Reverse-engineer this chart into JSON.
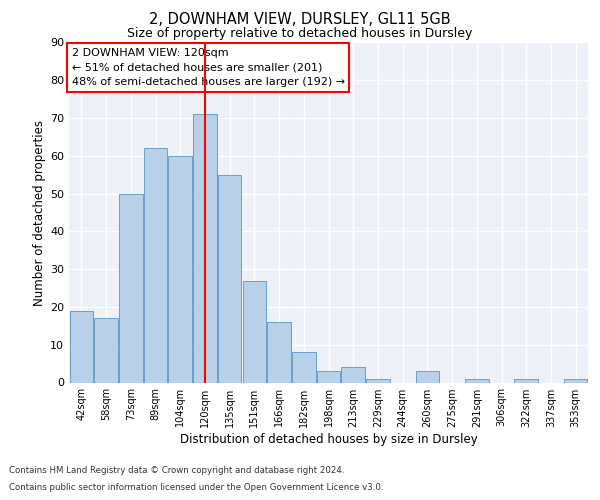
{
  "title1": "2, DOWNHAM VIEW, DURSLEY, GL11 5GB",
  "title2": "Size of property relative to detached houses in Dursley",
  "xlabel": "Distribution of detached houses by size in Dursley",
  "ylabel": "Number of detached properties",
  "categories": [
    "42sqm",
    "58sqm",
    "73sqm",
    "89sqm",
    "104sqm",
    "120sqm",
    "135sqm",
    "151sqm",
    "166sqm",
    "182sqm",
    "198sqm",
    "213sqm",
    "229sqm",
    "244sqm",
    "260sqm",
    "275sqm",
    "291sqm",
    "306sqm",
    "322sqm",
    "337sqm",
    "353sqm"
  ],
  "values": [
    19,
    17,
    50,
    62,
    60,
    71,
    55,
    27,
    16,
    8,
    3,
    4,
    1,
    0,
    3,
    0,
    1,
    0,
    1,
    0,
    1
  ],
  "bar_color": "#b8d0e8",
  "bar_edge_color": "#6aa0cc",
  "vline_x_index": 5,
  "vline_color": "red",
  "annotation_text": "2 DOWNHAM VIEW: 120sqm\n← 51% of detached houses are smaller (201)\n48% of semi-detached houses are larger (192) →",
  "annotation_box_color": "white",
  "annotation_box_edge_color": "red",
  "footer1": "Contains HM Land Registry data © Crown copyright and database right 2024.",
  "footer2": "Contains public sector information licensed under the Open Government Licence v3.0.",
  "ylim": [
    0,
    90
  ],
  "yticks": [
    0,
    10,
    20,
    30,
    40,
    50,
    60,
    70,
    80,
    90
  ],
  "background_color": "#eef2f8"
}
